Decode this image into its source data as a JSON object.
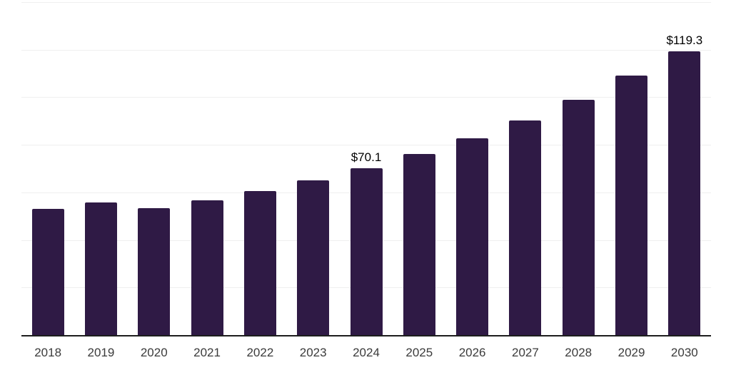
{
  "chart_data": {
    "type": "bar",
    "title": "",
    "xlabel": "",
    "ylabel": "",
    "categories": [
      "2018",
      "2019",
      "2020",
      "2021",
      "2022",
      "2023",
      "2024",
      "2025",
      "2026",
      "2027",
      "2028",
      "2029",
      "2030"
    ],
    "values": [
      53.2,
      55.9,
      53.3,
      56.6,
      60.7,
      65.0,
      70.1,
      76.1,
      82.6,
      90.3,
      98.9,
      109.0,
      119.3
    ],
    "data_labels": [
      {
        "category": "2024",
        "text": "$70.1"
      },
      {
        "category": "2030",
        "text": "$119.3"
      }
    ],
    "ylim": [
      0,
      140
    ],
    "gridline_step": 20,
    "grid": true,
    "legend": false,
    "y_axis_labels_visible": false,
    "colors": {
      "bar": "#2f1a45",
      "gridline": "#efefef",
      "axis_line": "#1d1d1d",
      "tick_label": "#3b3b3b",
      "data_label": "#000000",
      "background": "#ffffff"
    }
  }
}
